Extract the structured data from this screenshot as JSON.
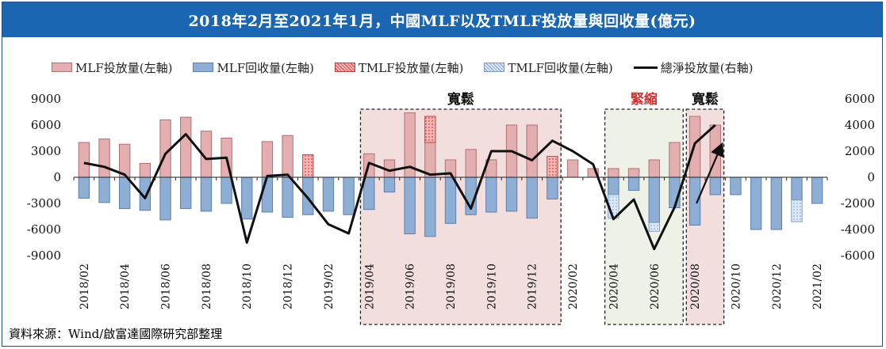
{
  "title": "2018年2月至2021年1月，中國MLF以及TMLF投放量與回收量(億元)",
  "source": "資料來源：Wind/啟富達國際研究部整理",
  "legend": {
    "mlf_injection": "MLF投放量(左軸)",
    "mlf_withdrawal": "MLF回收量(左軸)",
    "tmlf_injection": "TMLF投放量(左軸)",
    "tmlf_withdrawal": "TMLF回收量(左軸)",
    "net_injection": "總淨投放量(右軸)"
  },
  "colors": {
    "mlf_injection": "#e3aeb0",
    "mlf_withdrawal": "#8eaed4",
    "tmlf_injection": "#f08080",
    "tmlf_withdrawal": "#c9dcf2",
    "net_line": "#111111",
    "loose_fill": "#f3dede",
    "tight_fill": "#eef1e6",
    "tight_label": "#d03030",
    "title_bg": "#1a66b3"
  },
  "chart_data": {
    "type": "bar",
    "categories": [
      "2018/02",
      "2018/03",
      "2018/04",
      "2018/05",
      "2018/06",
      "2018/07",
      "2018/08",
      "2018/09",
      "2018/10",
      "2018/11",
      "2018/12",
      "2019/01",
      "2019/02",
      "2019/03",
      "2019/04",
      "2019/05",
      "2019/06",
      "2019/07",
      "2019/08",
      "2019/09",
      "2019/10",
      "2019/11",
      "2019/12",
      "2020/01",
      "2020/02",
      "2020/03",
      "2020/04",
      "2020/05",
      "2020/06",
      "2020/07",
      "2020/08",
      "2020/09",
      "2020/10",
      "2020/11",
      "2020/12",
      "2021/01",
      "2021/02"
    ],
    "x_tick_labels": [
      "2018/02",
      "2018/04",
      "2018/06",
      "2018/08",
      "2018/10",
      "2018/12",
      "2019/02",
      "2019/04",
      "2019/06",
      "2019/08",
      "2019/10",
      "2019/12",
      "2020/02",
      "2020/04",
      "2020/06",
      "2020/08",
      "2020/10",
      "2020/12",
      "2021/02"
    ],
    "y_left": {
      "min": -9000,
      "max": 9000,
      "ticks": [
        9000,
        6000,
        3000,
        0,
        -3000,
        -6000,
        -9000
      ]
    },
    "y_right": {
      "min": -6000,
      "max": 6000,
      "ticks": [
        6000,
        4000,
        2000,
        0,
        -2000,
        -4000,
        -6000
      ]
    },
    "series": [
      {
        "name": "MLF投放量(左軸)",
        "axis": "left",
        "values": [
          4000,
          4400,
          3800,
          1600,
          6600,
          6900,
          5300,
          4500,
          0,
          4100,
          4800,
          0,
          0,
          0,
          2700,
          2000,
          7400,
          4000,
          2000,
          3200,
          2000,
          6000,
          6000,
          0,
          2000,
          1000,
          1000,
          1000,
          2000,
          4000,
          7000,
          6000,
          0,
          0,
          0,
          0,
          0
        ]
      },
      {
        "name": "TMLF投放量(左軸)",
        "axis": "left",
        "values": [
          0,
          0,
          0,
          0,
          0,
          0,
          0,
          0,
          0,
          0,
          0,
          2600,
          0,
          0,
          0,
          0,
          0,
          3000,
          0,
          0,
          0,
          0,
          0,
          2400,
          0,
          0,
          0,
          0,
          0,
          0,
          0,
          0,
          0,
          0,
          0,
          0,
          0
        ]
      },
      {
        "name": "MLF回收量(左軸)",
        "axis": "left",
        "values": [
          -2400,
          -2900,
          -3600,
          -3800,
          -4900,
          -3600,
          -3900,
          -3000,
          -4800,
          -4000,
          -4600,
          -4300,
          -3900,
          -4300,
          -3700,
          -1700,
          -6500,
          -6800,
          -5300,
          -4300,
          -4000,
          -3900,
          -4700,
          -2500,
          0,
          0,
          -2000,
          -1500,
          -5200,
          -3500,
          -5500,
          -2000,
          -2000,
          -6000,
          -6000,
          -2600,
          -3000
        ]
      },
      {
        "name": "TMLF回收量(左軸)",
        "axis": "left",
        "values": [
          0,
          0,
          0,
          0,
          0,
          0,
          0,
          0,
          0,
          0,
          0,
          0,
          0,
          0,
          0,
          0,
          0,
          0,
          0,
          0,
          0,
          0,
          0,
          0,
          0,
          0,
          -2700,
          0,
          -1000,
          0,
          0,
          0,
          0,
          0,
          0,
          -2500,
          0
        ]
      },
      {
        "name": "總淨投放量(右軸)",
        "axis": "right",
        "type": "line",
        "values": [
          1100,
          800,
          200,
          -1600,
          1800,
          3300,
          1400,
          1500,
          -5000,
          100,
          200,
          -1600,
          -3600,
          -4300,
          1100,
          500,
          800,
          200,
          300,
          -2400,
          2000,
          2000,
          1300,
          2800,
          2000,
          1000,
          -3200,
          -1700,
          -5500,
          -2300,
          2600,
          4000,
          null,
          null,
          null,
          null,
          null
        ]
      }
    ],
    "annotations": [
      {
        "label": "寬鬆",
        "from": "2019/04",
        "to": "2020/01",
        "kind": "loose"
      },
      {
        "label": "緊縮",
        "from": "2020/04",
        "to": "2020/07",
        "kind": "tight"
      },
      {
        "label": "寬鬆",
        "from": "2020/08",
        "to": "2020/09",
        "kind": "loose"
      }
    ],
    "arrow": {
      "from": {
        "x": "2020/08",
        "y": -2000
      },
      "to": {
        "x": "2020/09",
        "y": 2200
      }
    }
  }
}
